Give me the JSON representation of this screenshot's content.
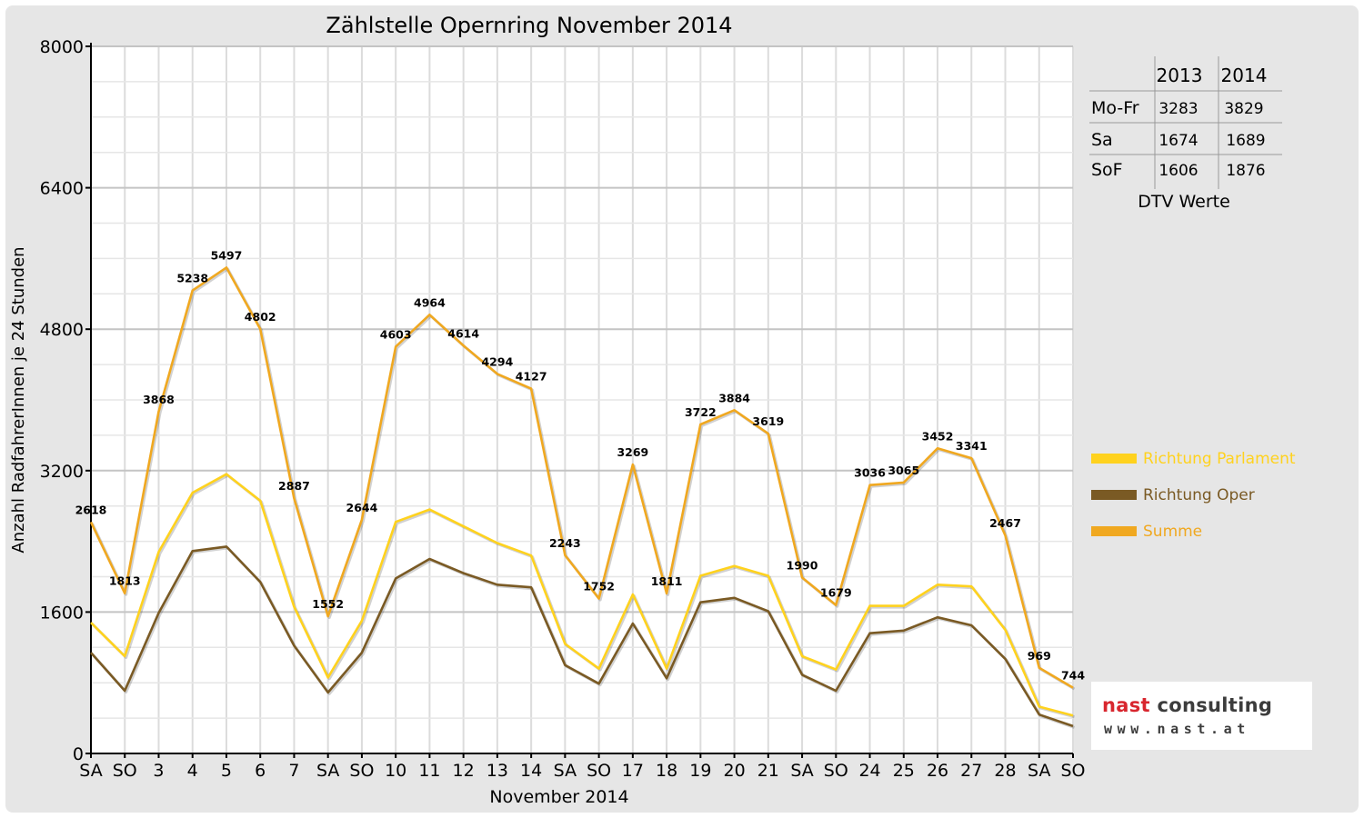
{
  "chart_data": {
    "type": "line",
    "title": "Zählstelle Opernring November 2014",
    "xlabel": "November 2014",
    "ylabel": "Anzahl RadfahrerInnen je 24 Stunden",
    "ylim": [
      0,
      8000
    ],
    "yticks": [
      0,
      1600,
      3200,
      4800,
      6400,
      8000
    ],
    "grid": true,
    "legend_position": "right",
    "categories": [
      "SA",
      "SO",
      "3",
      "4",
      "5",
      "6",
      "7",
      "SA",
      "SO",
      "10",
      "11",
      "12",
      "13",
      "14",
      "SA",
      "SO",
      "17",
      "18",
      "19",
      "20",
      "21",
      "SA",
      "SO",
      "24",
      "25",
      "26",
      "27",
      "28",
      "SA",
      "SO"
    ],
    "category_colors": [
      "#000000",
      "#e00000",
      "#000000",
      "#000000",
      "#000000",
      "#000000",
      "#000000",
      "#000000",
      "#e00000",
      "#000000",
      "#000000",
      "#000000",
      "#000000",
      "#000000",
      "#000000",
      "#e00000",
      "#000000",
      "#000000",
      "#000000",
      "#000000",
      "#000000",
      "#000000",
      "#e00000",
      "#000000",
      "#000000",
      "#000000",
      "#000000",
      "#000000",
      "#000000",
      "#e00000"
    ],
    "series": [
      {
        "name": "Richtung Parlament",
        "color": "#ffd21e",
        "values": [
          1480,
          1100,
          2280,
          2950,
          3160,
          2860,
          1660,
          860,
          1500,
          2620,
          2760,
          2570,
          2380,
          2240,
          1240,
          960,
          1800,
          960,
          2010,
          2120,
          2010,
          1100,
          950,
          1670,
          1670,
          1910,
          1890,
          1400,
          530,
          430
        ]
      },
      {
        "name": "Richtung Oper",
        "color": "#7a5a24",
        "values": [
          1140,
          710,
          1590,
          2290,
          2340,
          1940,
          1220,
          690,
          1140,
          1980,
          2200,
          2040,
          1910,
          1880,
          1000,
          790,
          1470,
          850,
          1710,
          1760,
          1610,
          890,
          710,
          1360,
          1390,
          1540,
          1450,
          1070,
          440,
          310
        ]
      },
      {
        "name": "Summe",
        "color": "#f0a820",
        "values": [
          2618,
          1813,
          3868,
          5238,
          5497,
          4802,
          2887,
          1552,
          2644,
          4603,
          4964,
          4614,
          4294,
          4127,
          2243,
          1752,
          3269,
          1811,
          3722,
          3884,
          3619,
          1990,
          1679,
          3036,
          3065,
          3452,
          3341,
          2467,
          969,
          744
        ],
        "labels": [
          "2618",
          "1813",
          "3868",
          "5238",
          "5497",
          "4802",
          "2887",
          "1552",
          "2644",
          "4603",
          "4964",
          "4614",
          "4294",
          "4127",
          "2243",
          "1752",
          "3269",
          "1811",
          "3722",
          "3884",
          "3619",
          "1990",
          "1679",
          "3036",
          "3065",
          "3452",
          "3341",
          "2467",
          "969",
          "744"
        ]
      }
    ]
  },
  "table": {
    "caption": "DTV Werte",
    "headers": [
      "2013",
      "2014"
    ],
    "rows": [
      {
        "label": "Mo-Fr",
        "v2013": "3283",
        "v2014": "3829"
      },
      {
        "label": "Sa",
        "v2013": "1674",
        "v2014": "1689"
      },
      {
        "label": "SoF",
        "v2013": "1606",
        "v2014": "1876"
      }
    ]
  },
  "logo": {
    "name_part1": "nast",
    "name_part2": " consulting",
    "url": "www.nast.at"
  }
}
